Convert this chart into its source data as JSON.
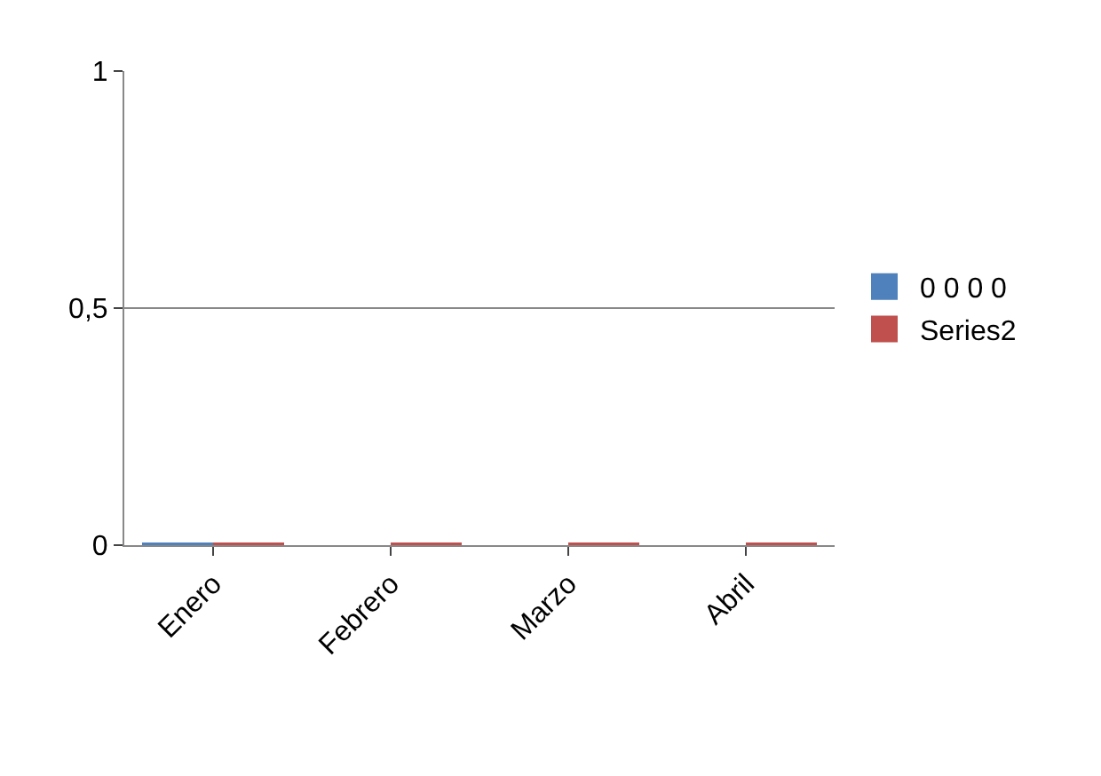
{
  "chart_data": {
    "type": "bar",
    "categories": [
      "Enero",
      "Febrero",
      "Marzo",
      "Abril"
    ],
    "series": [
      {
        "name": "0 0 0 0",
        "color": "#4f81bd",
        "values": [
          0,
          null,
          null,
          null
        ]
      },
      {
        "name": "Series2",
        "color": "#c0504d",
        "values": [
          0,
          0,
          0,
          0
        ]
      }
    ],
    "ylim": [
      0,
      1
    ],
    "yticks": [
      0,
      {
        "value": 0.5,
        "label": "0,5"
      },
      1
    ],
    "grid": "y",
    "legend": "right"
  }
}
